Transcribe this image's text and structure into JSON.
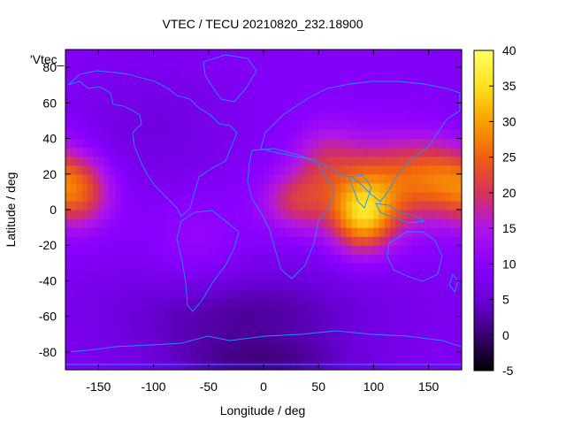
{
  "chart_data": {
    "type": "heatmap",
    "title": "VTEC / TECU 20210820_232.18900",
    "xlabel": "Longitude / deg",
    "ylabel": "Latitude / deg",
    "legend_entry": "'Vtec_",
    "xlim": [
      -180,
      180
    ],
    "ylim": [
      -90,
      90
    ],
    "xticks": [
      -150,
      -100,
      -50,
      0,
      50,
      100,
      150
    ],
    "yticks": [
      -80,
      -60,
      -40,
      -20,
      0,
      20,
      40,
      60,
      80
    ],
    "colorbar": {
      "range": [
        -5,
        40
      ],
      "ticks": [
        -5,
        0,
        5,
        10,
        15,
        20,
        25,
        30,
        35,
        40
      ],
      "palette": [
        "#000000",
        "#3a0070",
        "#6a00d8",
        "#8a00ff",
        "#b015e8",
        "#d4335a",
        "#f06010",
        "#f7a000",
        "#ffe020",
        "#ffff66"
      ]
    },
    "grid": false,
    "features": {
      "background_tec": 9,
      "asia_peak": {
        "lon": 90,
        "lat": -4,
        "tec": 38
      },
      "pacific_anomaly": {
        "lon": -168,
        "lat": 10,
        "tec": 22
      },
      "south_polar_min": {
        "lon": 0,
        "lat": -85,
        "tec": -2
      }
    }
  }
}
